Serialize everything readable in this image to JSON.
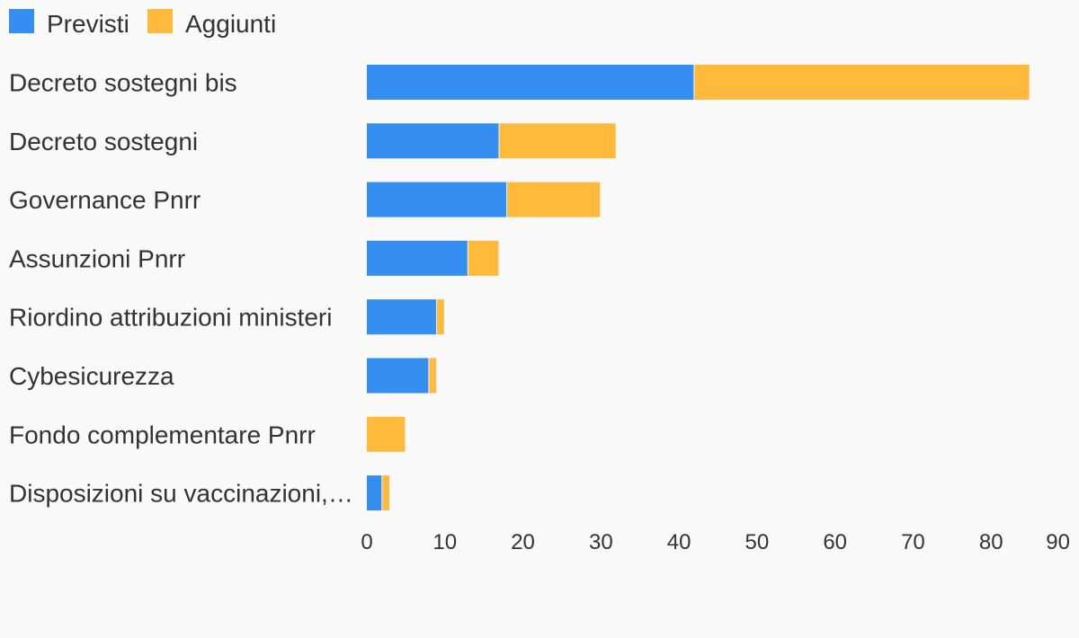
{
  "chart_data": {
    "type": "bar",
    "orientation": "horizontal",
    "stacked": true,
    "categories": [
      "Decreto sostegni bis",
      "Decreto sostegni",
      "Governance Pnrr",
      "Assunzioni Pnrr",
      "Riordino attribuzioni ministeri",
      "Cybesicurezza",
      "Fondo complementare Pnrr",
      "Disposizioni su vaccinazioni,…"
    ],
    "series": [
      {
        "name": "Previsti",
        "color": "#348ff0",
        "values": [
          42,
          17,
          18,
          13,
          9,
          8,
          0,
          2
        ]
      },
      {
        "name": "Aggiunti",
        "color": "#ffb93b",
        "values": [
          43,
          15,
          12,
          4,
          1,
          1,
          5,
          1
        ]
      }
    ],
    "xticks": [
      "0",
      "10",
      "20",
      "30",
      "40",
      "50",
      "60",
      "70",
      "80",
      "90"
    ],
    "xlim": [
      0,
      90
    ],
    "legend": "top-left",
    "grid": false,
    "title": "",
    "xlabel": "",
    "ylabel": ""
  }
}
